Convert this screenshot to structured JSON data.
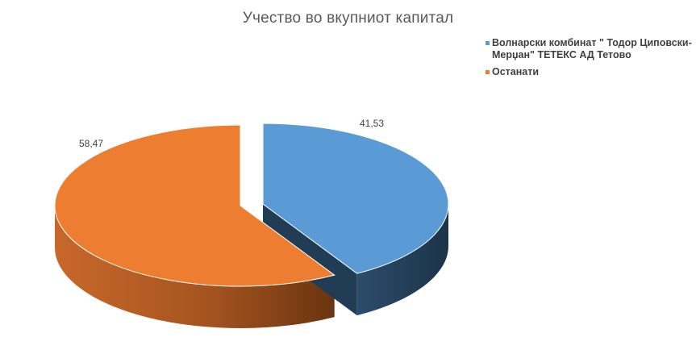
{
  "chart_data": {
    "type": "pie",
    "title": "Учество во вкупниот капитал",
    "categories": [
      "Волнарски комбинат \" Тодор Циповски-Мерџан\" ТЕТЕКС АД Тетово",
      "Останати"
    ],
    "values": [
      41.53,
      58.47
    ],
    "value_labels": [
      "41,53",
      "58,47"
    ],
    "colors": [
      "#5B9BD5",
      "#ED7D31"
    ],
    "side_colors": [
      "#213D56",
      "#8A4415"
    ],
    "three_d": true,
    "exploded_slice": 0,
    "legend_position": "top-right"
  }
}
